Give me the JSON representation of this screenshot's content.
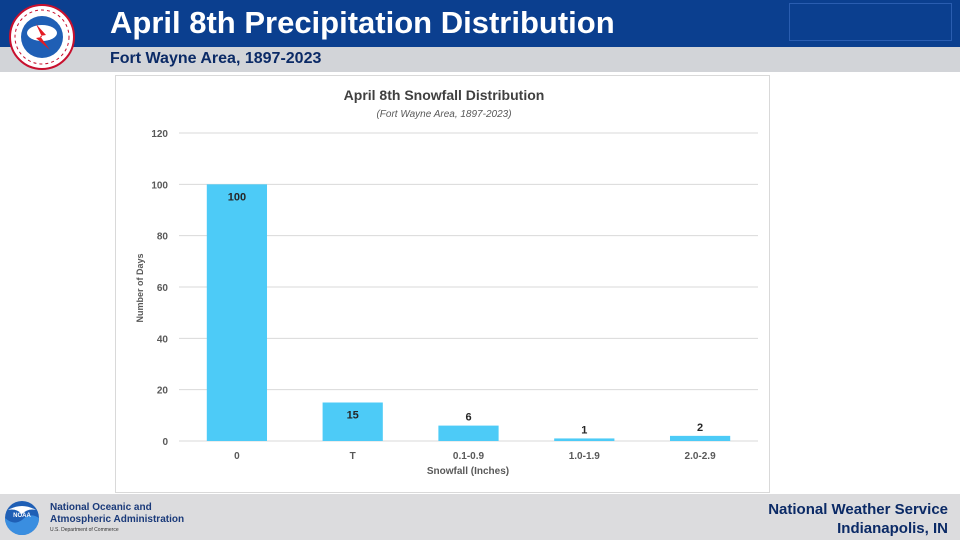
{
  "header": {
    "title": "April 8th Precipitation Distribution",
    "subtitle": "Fort Wayne Area, 1897-2023"
  },
  "logo": {
    "icon": "nws-logo-icon",
    "letters": "NATIONAL WEATHER SERVICE"
  },
  "footer": {
    "noaa_line1": "National Oceanic and",
    "noaa_line2": "Atmospheric Administration",
    "noaa_dept": "U.S. Department of Commerce",
    "noaa_letters": "NOAA",
    "nws_line1": "National Weather Service",
    "nws_line2": "Indianapolis, IN"
  },
  "colors": {
    "header_bg": "#0b3f8f",
    "bar": "#4dcbf7",
    "grid": "#d9d9d9"
  },
  "chart_data": {
    "type": "bar",
    "title": "April 8th Snowfall Distribution",
    "subtitle": "(Fort Wayne Area, 1897-2023)",
    "xlabel": "Snowfall (Inches)",
    "ylabel": "Number of Days",
    "categories": [
      "0",
      "T",
      "0.1-0.9",
      "1.0-1.9",
      "2.0-2.9"
    ],
    "values": [
      100,
      15,
      6,
      1,
      2
    ],
    "ylim": [
      0,
      120
    ],
    "yticks": [
      0,
      20,
      40,
      60,
      80,
      100,
      120
    ],
    "grid": true,
    "data_labels": true
  }
}
